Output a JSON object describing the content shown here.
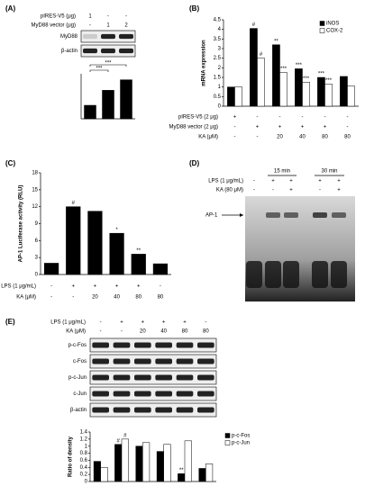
{
  "chart_data": [
    {
      "type": "bar",
      "panel_label": "(A)",
      "conditions": [
        {
          "label": "pIRES-V5 (μg)",
          "values": [
            "1",
            "-",
            "-"
          ]
        },
        {
          "label": "MyD88 vector (μg)",
          "values": [
            "-",
            "1",
            "2"
          ]
        }
      ],
      "blot_labels": [
        "MyD88",
        "β-actin"
      ],
      "values": [
        0.45,
        0.95,
        1.3
      ],
      "color": "#000000",
      "ylim": [
        0,
        1.5
      ],
      "brackets": [
        {
          "text": "***",
          "from": 0,
          "to": 1
        },
        {
          "text": "***",
          "from": 0,
          "to": 2
        }
      ]
    },
    {
      "type": "bar",
      "panel_label": "(B)",
      "y_label": "mRNA expression",
      "conditions": [
        {
          "label": "pIRES-V5 (2 μg)",
          "values": [
            "+",
            "-",
            "-",
            "-",
            "-",
            "-"
          ]
        },
        {
          "label": "MyD88 vector (2 μg)",
          "values": [
            "-",
            "+",
            "+",
            "+",
            "+",
            "-"
          ]
        },
        {
          "label": "KA (μM)",
          "values": [
            "-",
            "-",
            "20",
            "40",
            "80",
            "80"
          ]
        }
      ],
      "series": [
        {
          "name": "iNOS",
          "color": "#000000",
          "values": [
            1.0,
            4.05,
            3.2,
            1.95,
            1.5,
            1.55
          ],
          "annotations": [
            null,
            "#",
            "**",
            "***",
            "***",
            null
          ]
        },
        {
          "name": "COX-2",
          "color": "#ffffff",
          "values": [
            1.0,
            2.5,
            1.75,
            1.25,
            1.15,
            1.05
          ],
          "annotations": [
            null,
            "#",
            "***",
            "***",
            "***",
            null
          ]
        }
      ],
      "ylim": [
        0,
        4.5
      ],
      "yticks": [
        0,
        0.5,
        1,
        1.5,
        2,
        2.5,
        3,
        3.5,
        4,
        4.5
      ],
      "legend": "upper right"
    },
    {
      "type": "bar",
      "panel_label": "(C)",
      "y_label": "AP-1 Luciferase activity (RLU)",
      "conditions": [
        {
          "label": "LPS (1 μg/mL)",
          "values": [
            "-",
            "+",
            "+",
            "+",
            "+",
            "-"
          ]
        },
        {
          "label": "KA (μM)",
          "values": [
            "-",
            "-",
            "20",
            "40",
            "80",
            "80"
          ]
        }
      ],
      "values": [
        2,
        12,
        11.2,
        7.3,
        3.6,
        1.9
      ],
      "color": "#000000",
      "annotations": [
        null,
        "#",
        null,
        "*",
        "**",
        null
      ],
      "ylim": [
        0,
        18
      ],
      "yticks": [
        0,
        3,
        6,
        9,
        12,
        15,
        18
      ]
    },
    {
      "type": "bar",
      "panel_label": "(E)",
      "y_label": "Ratio of density",
      "conditions": [
        {
          "label": "LPS (1 μg/mL)",
          "values": [
            "-",
            "+",
            "+",
            "+",
            "+",
            "-"
          ]
        },
        {
          "label": "KA (μM)",
          "values": [
            "-",
            "-",
            "20",
            "40",
            "80",
            "80"
          ]
        }
      ],
      "blot_labels": [
        "p-c-Fos",
        "c-Fos",
        "p-c-Jun",
        "c-Jun",
        "β-actin"
      ],
      "series": [
        {
          "name": "p-c-Fos",
          "color": "#000000",
          "values": [
            0.57,
            1.05,
            1.0,
            0.85,
            0.22,
            0.37
          ],
          "annotations": [
            null,
            "#",
            null,
            null,
            "**",
            null
          ]
        },
        {
          "name": "p-c-Jun",
          "color": "#ffffff",
          "values": [
            0.4,
            1.2,
            1.1,
            1.05,
            1.15,
            0.5
          ],
          "annotations": [
            null,
            "#",
            null,
            null,
            null,
            null
          ]
        }
      ],
      "ylim": [
        0,
        1.4
      ],
      "yticks": [
        0,
        0.2,
        0.4,
        0.6,
        0.8,
        1,
        1.2,
        1.4
      ],
      "legend": "upper right"
    }
  ],
  "gel_panel": {
    "panel_label": "(D)",
    "time_labels": [
      "15 min",
      "30 min"
    ],
    "conditions": [
      {
        "label": "LPS (1 μg/mL)",
        "values": [
          "-",
          "+",
          "+",
          "+",
          "+"
        ]
      },
      {
        "label": "KA (80 μM)",
        "values": [
          "-",
          "-",
          "+",
          "-",
          "+"
        ]
      }
    ],
    "band_label": "AP-1"
  }
}
